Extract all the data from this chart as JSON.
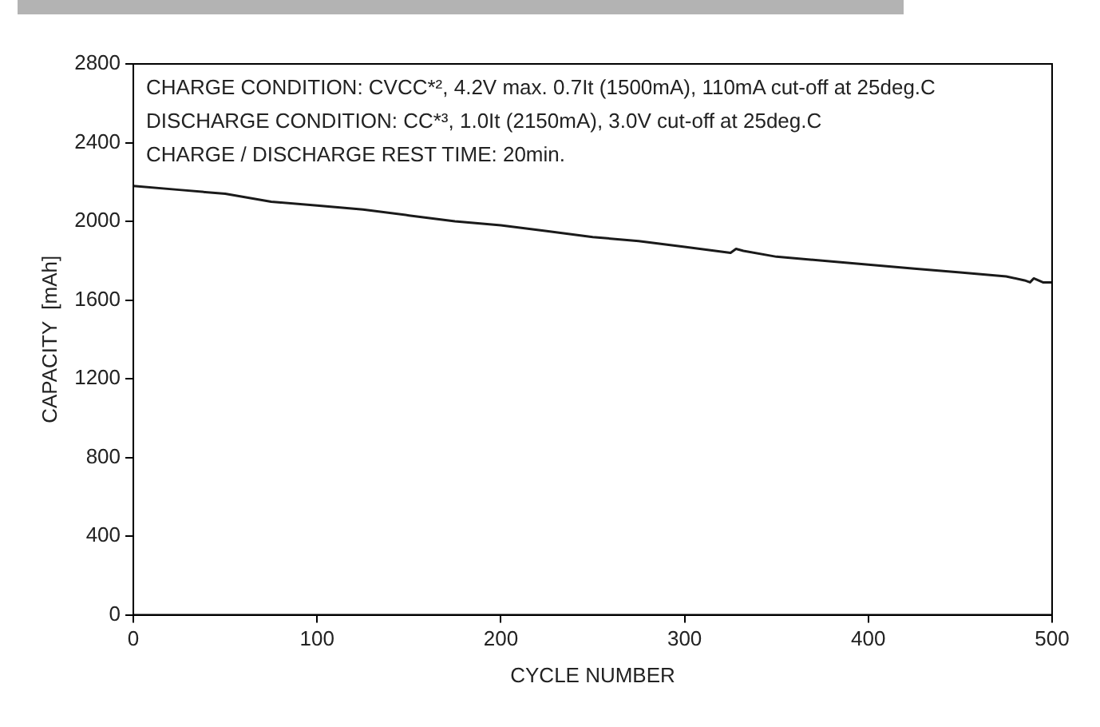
{
  "chart_data": {
    "type": "line",
    "xlabel": "CYCLE NUMBER",
    "ylabel": "CAPACITY  [mAh]",
    "x": [
      0,
      25,
      50,
      75,
      100,
      125,
      150,
      175,
      200,
      225,
      250,
      275,
      300,
      325,
      328,
      332,
      350,
      375,
      400,
      425,
      450,
      475,
      485,
      488,
      490,
      495,
      500
    ],
    "series": [
      {
        "color": "#1a1a1a",
        "values": [
          2180,
          2160,
          2140,
          2100,
          2080,
          2060,
          2030,
          2000,
          1980,
          1950,
          1920,
          1900,
          1870,
          1840,
          1860,
          1850,
          1820,
          1800,
          1780,
          1760,
          1740,
          1720,
          1700,
          1690,
          1710,
          1690,
          1690
        ]
      }
    ],
    "xlim": [
      0,
      500
    ],
    "xticks": [
      0,
      100,
      200,
      300,
      400,
      500
    ],
    "ylim": [
      0,
      2800
    ],
    "yticks": [
      0,
      400,
      800,
      1200,
      1600,
      2000,
      2400,
      2800
    ],
    "grid": false,
    "legend": false,
    "marker": "none",
    "line_style": "solid",
    "annotations": [
      "CHARGE CONDITION: CVCC*², 4.2V max. 0.7It (1500mA), 110mA cut-off at 25deg.C",
      "DISCHARGE CONDITION: CC*³, 1.0It (2150mA), 3.0V cut-off at 25deg.C",
      "CHARGE / DISCHARGE REST TIME: 20min."
    ]
  }
}
